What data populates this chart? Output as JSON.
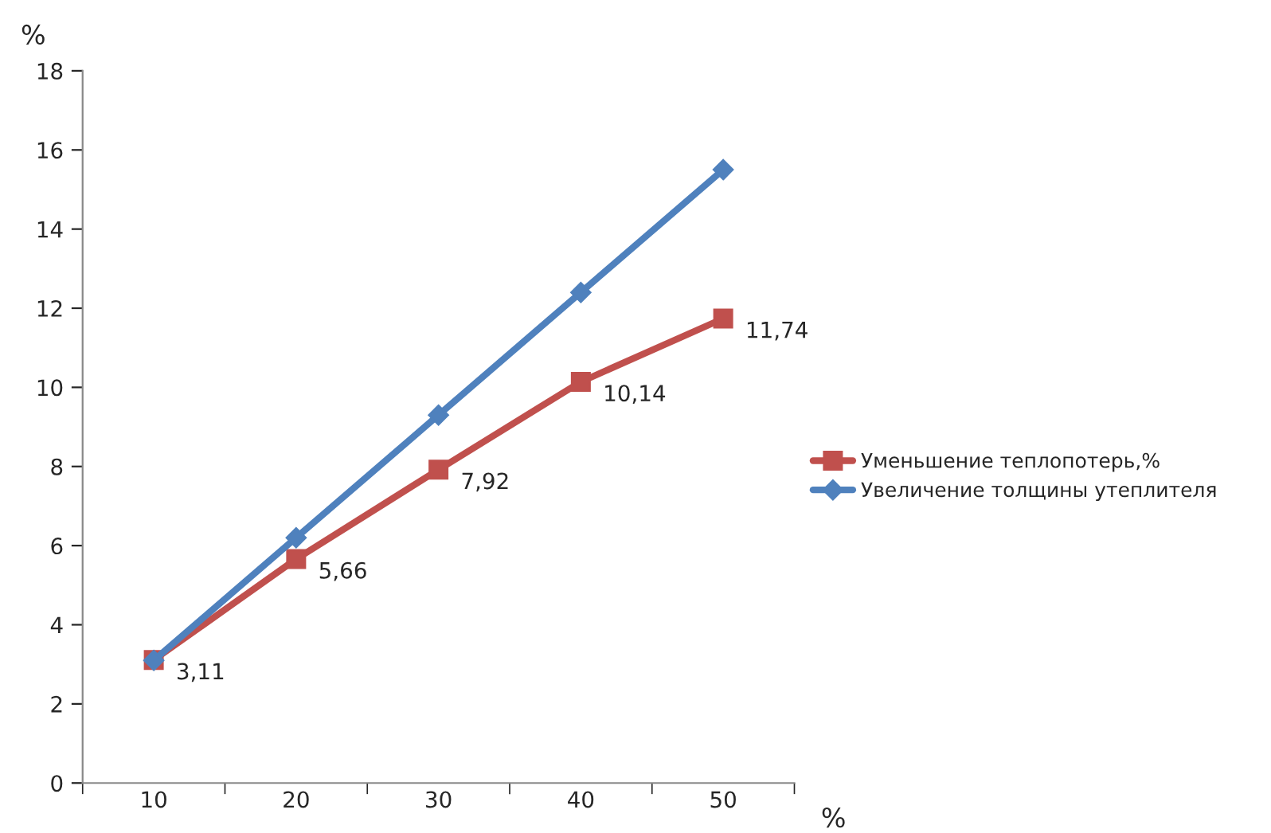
{
  "chart_data": {
    "type": "line",
    "xlabel": "%",
    "ylabel": "%",
    "categories": [
      "10",
      "20",
      "30",
      "40",
      "50"
    ],
    "series": [
      {
        "name": "Уменьшение теплопотерь,%",
        "color": "#c0504d",
        "marker": "square",
        "values": [
          3.11,
          5.66,
          7.92,
          10.14,
          11.74
        ],
        "value_labels": [
          "3,11",
          "5,66",
          "7,92",
          "10,14",
          "11,74"
        ]
      },
      {
        "name": "Увеличение толщины утеплителя",
        "color": "#4f81bd",
        "marker": "diamond",
        "values": [
          3.1,
          6.2,
          9.3,
          12.4,
          15.5
        ]
      }
    ],
    "ylim": [
      0,
      18
    ],
    "yticks": [
      0,
      2,
      4,
      6,
      8,
      10,
      12,
      14,
      16,
      18
    ],
    "grid": false,
    "legend": "right",
    "line_style": "solid"
  }
}
